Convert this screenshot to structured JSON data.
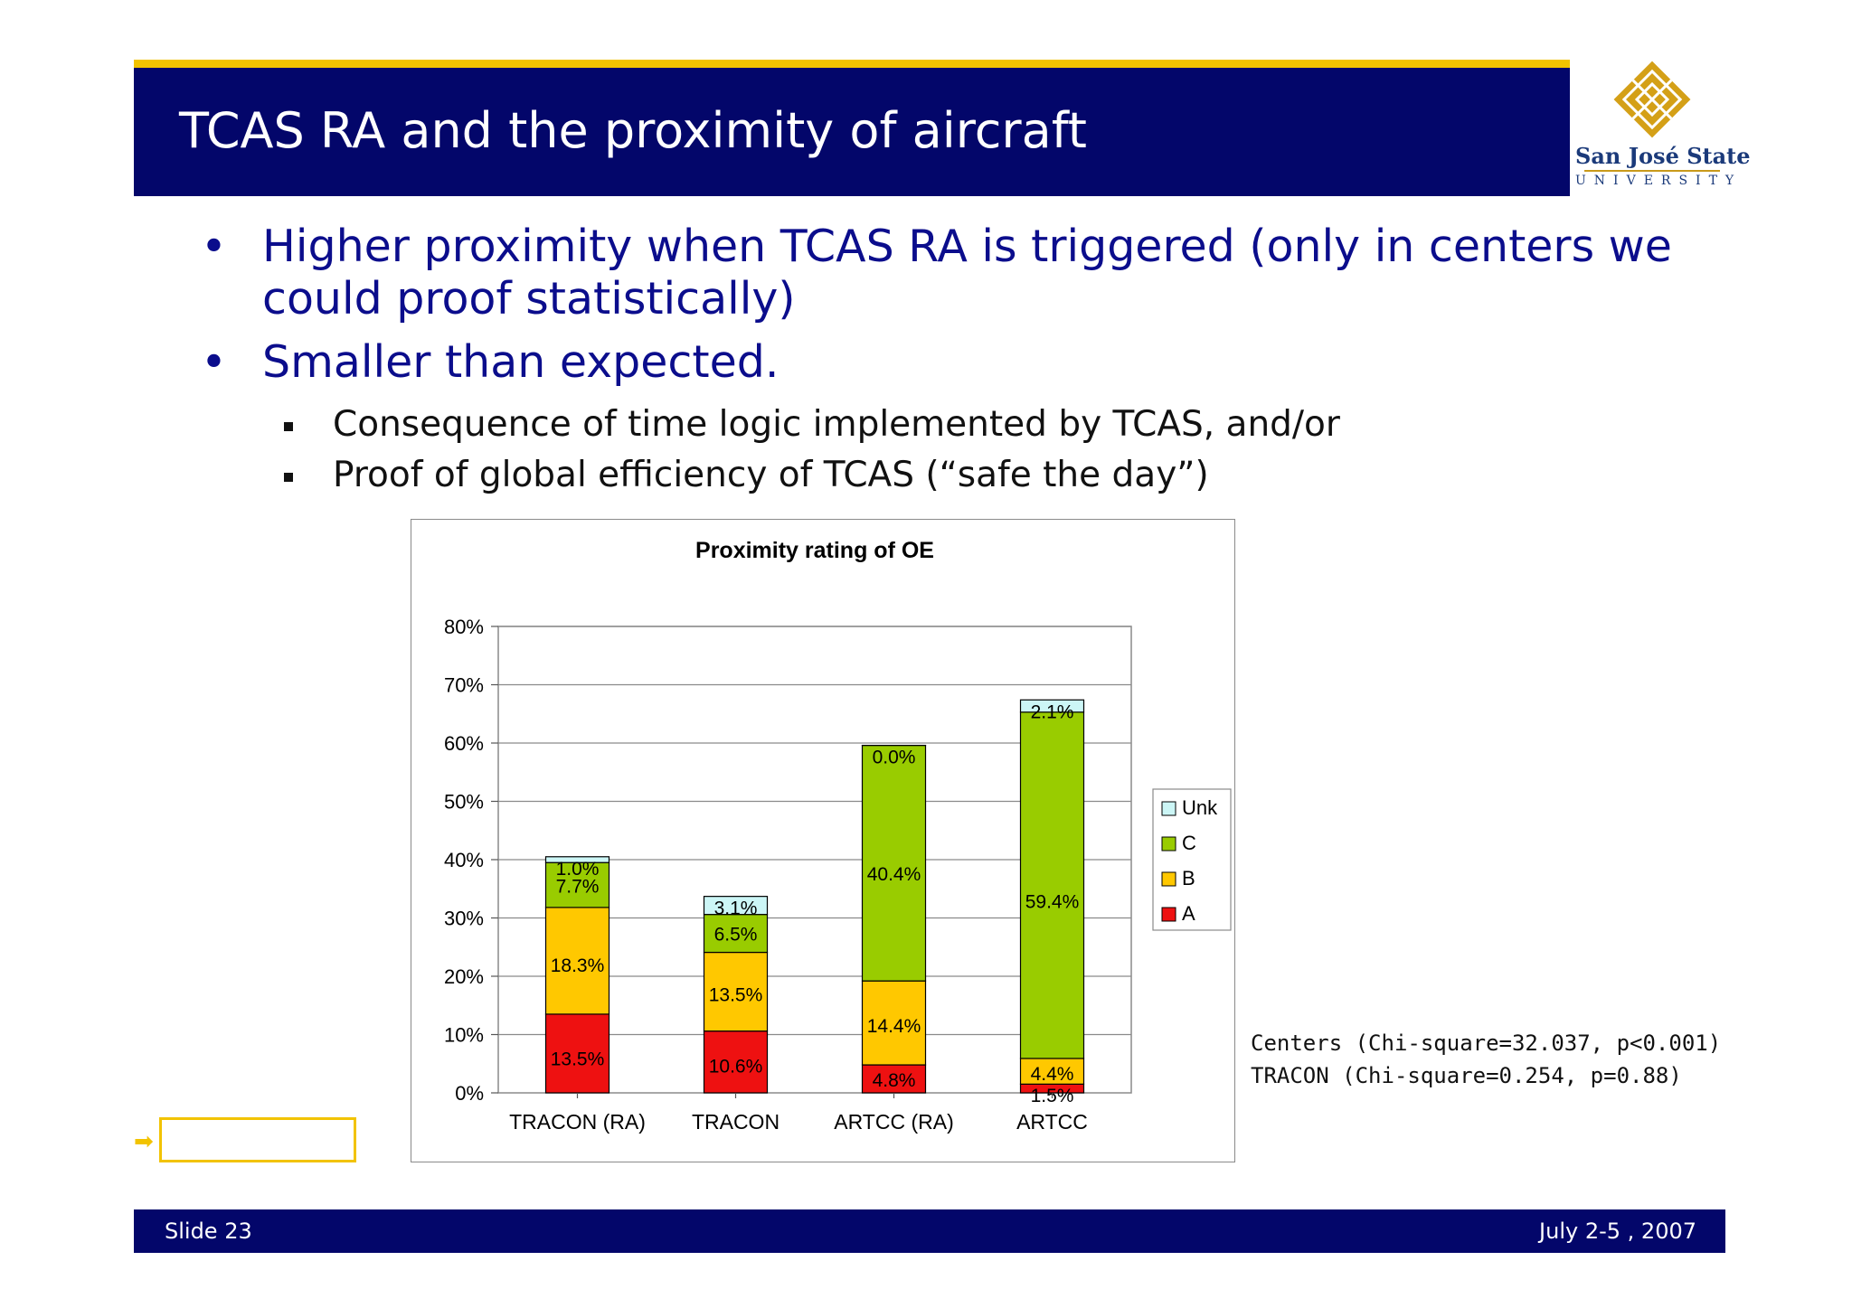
{
  "header": {
    "title": "TCAS RA and the proximity of aircraft"
  },
  "logo": {
    "name": "San José State",
    "sub": "UNIVERSITY",
    "accent": "#f2c300",
    "text_color": "#1b3a7a"
  },
  "bullets": [
    {
      "level": 1,
      "text": "Higher proximity when TCAS RA is triggered (only in centers we could proof statistically)"
    },
    {
      "level": 1,
      "text": "Smaller than expected."
    },
    {
      "level": 2,
      "text": "Consequence of time logic implemented by TCAS, and/or"
    },
    {
      "level": 2,
      "text": "Proof of global efficiency of TCAS (“safe the day”)"
    }
  ],
  "stats": [
    "Centers (Chi-square=32.037, p<0.001)",
    "TRACON (Chi-square=0.254, p=0.88)"
  ],
  "footer": {
    "slide": "Slide 23",
    "date": "July 2-5 , 2007"
  },
  "chart_data": {
    "type": "bar",
    "stacked": true,
    "title": "Proximity rating of OE",
    "categories": [
      "TRACON (RA)",
      "TRACON",
      "ARTCC (RA)",
      "ARTCC"
    ],
    "ylim": [
      0,
      80
    ],
    "yticks": [
      "0%",
      "10%",
      "20%",
      "30%",
      "40%",
      "50%",
      "60%",
      "70%",
      "80%"
    ],
    "grid": true,
    "legend_position": "right",
    "series": [
      {
        "name": "A",
        "color": "#ee1111",
        "values": [
          13.5,
          10.6,
          4.8,
          1.5
        ],
        "labels": [
          "13.5%",
          "10.6%",
          "4.8%",
          "1.5%"
        ]
      },
      {
        "name": "B",
        "color": "#ffc800",
        "values": [
          18.3,
          13.5,
          14.4,
          4.4
        ],
        "labels": [
          "18.3%",
          "13.5%",
          "14.4%",
          "4.4%"
        ]
      },
      {
        "name": "C",
        "color": "#99cc00",
        "values": [
          7.7,
          6.5,
          40.4,
          59.4
        ],
        "labels": [
          "7.7%",
          "6.5%",
          "40.4%",
          "59.4%"
        ]
      },
      {
        "name": "Unk",
        "color": "#ccf6f6",
        "values": [
          1.0,
          3.1,
          0.0,
          2.1
        ],
        "labels": [
          "1.0%",
          "3.1%",
          "0.0%",
          "2.1%"
        ]
      }
    ]
  }
}
